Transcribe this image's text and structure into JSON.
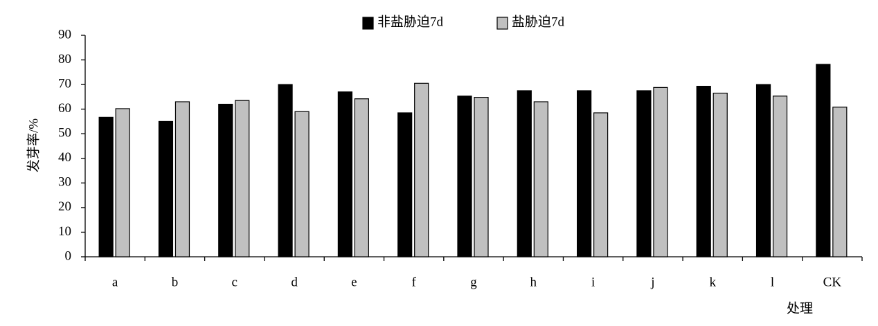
{
  "chart_data": {
    "type": "bar",
    "x_label": "处理",
    "y_label": "发芽率/%",
    "categories": [
      "a",
      "b",
      "c",
      "d",
      "e",
      "f",
      "g",
      "h",
      "i",
      "j",
      "k",
      "l",
      "CK"
    ],
    "series": [
      {
        "name": "非盐胁迫7d",
        "color": "#000000",
        "values": [
          56.7,
          55,
          62,
          70,
          67,
          58.5,
          65.3,
          67.5,
          67.5,
          67.5,
          69.3,
          70,
          78.2
        ]
      },
      {
        "name": "盐胁迫7d",
        "color": "#c0c0c0",
        "values": [
          60.2,
          63,
          63.5,
          59,
          64.2,
          70.5,
          64.8,
          63,
          58.5,
          68.8,
          66.5,
          65.3,
          60.8
        ]
      }
    ],
    "ylim": [
      0,
      90
    ],
    "yticks": [
      0,
      10,
      20,
      30,
      40,
      50,
      60,
      70,
      80,
      90
    ],
    "grid": false,
    "legend": "top"
  }
}
